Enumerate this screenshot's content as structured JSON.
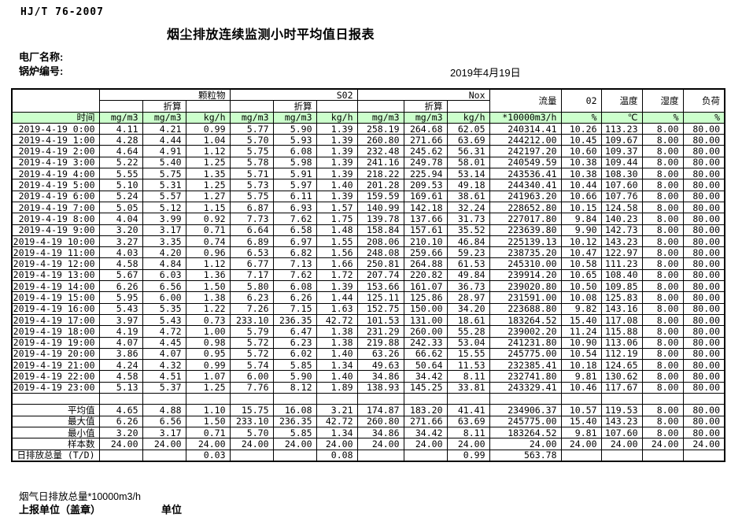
{
  "page": {
    "standard_code": "HJ/T 76-2007",
    "title": "烟尘排放连续监测小时平均值日报表",
    "plant_label": "电厂名称:",
    "boiler_label": "锅炉编号:",
    "date": "2019年4月19日"
  },
  "table": {
    "time_label": "时间",
    "converted_label": "折算",
    "group_labels": [
      "颗粒物",
      "S02",
      "Nox"
    ],
    "single_headers": [
      "流量",
      "02",
      "温度",
      "湿度",
      "负荷"
    ],
    "units": [
      "mg/m3",
      "mg/m3",
      "kg/h",
      "mg/m3",
      "mg/m3",
      "kg/h",
      "mg/m3",
      "mg/m3",
      "kg/h",
      "*10000m3/h",
      "%",
      "℃",
      "%",
      "%"
    ],
    "rows": [
      {
        "time": "2019-4-19 0:00",
        "values": [
          "4.11",
          "4.21",
          "0.99",
          "5.77",
          "5.90",
          "1.39",
          "258.19",
          "264.68",
          "62.05",
          "240314.41",
          "10.26",
          "113.23",
          "8.00",
          "80.00"
        ]
      },
      {
        "time": "2019-4-19 1:00",
        "values": [
          "4.28",
          "4.44",
          "1.04",
          "5.70",
          "5.93",
          "1.39",
          "260.80",
          "271.66",
          "63.69",
          "244212.00",
          "10.45",
          "109.67",
          "8.00",
          "80.00"
        ]
      },
      {
        "time": "2019-4-19 2:00",
        "values": [
          "4.64",
          "4.91",
          "1.12",
          "5.75",
          "6.08",
          "1.39",
          "232.48",
          "245.62",
          "56.31",
          "242197.20",
          "10.60",
          "109.37",
          "8.00",
          "80.00"
        ]
      },
      {
        "time": "2019-4-19 3:00",
        "values": [
          "5.22",
          "5.40",
          "1.25",
          "5.78",
          "5.98",
          "1.39",
          "241.16",
          "249.78",
          "58.01",
          "240549.59",
          "10.38",
          "109.44",
          "8.00",
          "80.00"
        ]
      },
      {
        "time": "2019-4-19 4:00",
        "values": [
          "5.55",
          "5.75",
          "1.35",
          "5.71",
          "5.91",
          "1.39",
          "218.22",
          "225.94",
          "53.14",
          "243536.41",
          "10.38",
          "108.30",
          "8.00",
          "80.00"
        ]
      },
      {
        "time": "2019-4-19 5:00",
        "values": [
          "5.10",
          "5.31",
          "1.25",
          "5.73",
          "5.97",
          "1.40",
          "201.28",
          "209.53",
          "49.18",
          "244340.41",
          "10.44",
          "107.60",
          "8.00",
          "80.00"
        ]
      },
      {
        "time": "2019-4-19 6:00",
        "values": [
          "5.24",
          "5.57",
          "1.27",
          "5.75",
          "6.11",
          "1.39",
          "159.59",
          "169.61",
          "38.61",
          "241963.20",
          "10.66",
          "107.76",
          "8.00",
          "80.00"
        ]
      },
      {
        "time": "2019-4-19 7:00",
        "values": [
          "5.05",
          "5.12",
          "1.15",
          "6.87",
          "6.93",
          "1.57",
          "140.99",
          "142.18",
          "32.24",
          "228652.80",
          "10.15",
          "124.58",
          "8.00",
          "80.00"
        ]
      },
      {
        "time": "2019-4-19 8:00",
        "values": [
          "4.04",
          "3.99",
          "0.92",
          "7.73",
          "7.62",
          "1.75",
          "139.78",
          "137.66",
          "31.73",
          "227017.80",
          "9.84",
          "140.23",
          "8.00",
          "80.00"
        ]
      },
      {
        "time": "2019-4-19 9:00",
        "values": [
          "3.20",
          "3.17",
          "0.71",
          "6.64",
          "6.58",
          "1.48",
          "158.84",
          "157.61",
          "35.52",
          "223639.80",
          "9.90",
          "142.73",
          "8.00",
          "80.00"
        ]
      },
      {
        "time": "2019-4-19 10:00",
        "values": [
          "3.27",
          "3.35",
          "0.74",
          "6.89",
          "6.97",
          "1.55",
          "208.06",
          "210.10",
          "46.84",
          "225139.13",
          "10.12",
          "143.23",
          "8.00",
          "80.00"
        ]
      },
      {
        "time": "2019-4-19 11:00",
        "values": [
          "4.03",
          "4.20",
          "0.96",
          "6.53",
          "6.82",
          "1.56",
          "248.08",
          "259.66",
          "59.23",
          "238735.20",
          "10.47",
          "122.97",
          "8.00",
          "80.00"
        ]
      },
      {
        "time": "2019-4-19 12:00",
        "values": [
          "4.58",
          "4.84",
          "1.12",
          "6.77",
          "7.13",
          "1.66",
          "250.81",
          "264.88",
          "61.53",
          "245310.00",
          "10.58",
          "111.23",
          "8.00",
          "80.00"
        ]
      },
      {
        "time": "2019-4-19 13:00",
        "values": [
          "5.67",
          "6.03",
          "1.36",
          "7.17",
          "7.62",
          "1.72",
          "207.74",
          "220.82",
          "49.84",
          "239914.20",
          "10.65",
          "108.40",
          "8.00",
          "80.00"
        ]
      },
      {
        "time": "2019-4-19 14:00",
        "values": [
          "6.26",
          "6.56",
          "1.50",
          "5.80",
          "6.08",
          "1.39",
          "153.66",
          "161.07",
          "36.73",
          "239020.80",
          "10.50",
          "109.85",
          "8.00",
          "80.00"
        ]
      },
      {
        "time": "2019-4-19 15:00",
        "values": [
          "5.95",
          "6.00",
          "1.38",
          "6.23",
          "6.26",
          "1.44",
          "125.11",
          "125.86",
          "28.97",
          "231591.00",
          "10.08",
          "125.83",
          "8.00",
          "80.00"
        ]
      },
      {
        "time": "2019-4-19 16:00",
        "values": [
          "5.43",
          "5.35",
          "1.22",
          "7.26",
          "7.15",
          "1.63",
          "152.75",
          "150.00",
          "34.20",
          "223688.80",
          "9.82",
          "143.16",
          "8.00",
          "80.00"
        ]
      },
      {
        "time": "2019-4-19 17:00",
        "values": [
          "3.97",
          "5.43",
          "0.73",
          "233.10",
          "236.35",
          "42.72",
          "101.53",
          "131.00",
          "18.61",
          "183264.52",
          "15.40",
          "117.08",
          "8.00",
          "80.00"
        ]
      },
      {
        "time": "2019-4-19 18:00",
        "values": [
          "4.19",
          "4.72",
          "1.00",
          "5.79",
          "6.47",
          "1.38",
          "231.29",
          "260.00",
          "55.28",
          "239002.20",
          "11.24",
          "115.88",
          "8.00",
          "80.00"
        ]
      },
      {
        "time": "2019-4-19 19:00",
        "values": [
          "4.07",
          "4.45",
          "0.98",
          "5.72",
          "6.23",
          "1.38",
          "219.88",
          "242.33",
          "53.04",
          "241231.80",
          "10.90",
          "113.06",
          "8.00",
          "80.00"
        ]
      },
      {
        "time": "2019-4-19 20:00",
        "values": [
          "3.86",
          "4.07",
          "0.95",
          "5.72",
          "6.02",
          "1.40",
          "63.26",
          "66.62",
          "15.55",
          "245775.00",
          "10.54",
          "112.19",
          "8.00",
          "80.00"
        ]
      },
      {
        "time": "2019-4-19 21:00",
        "values": [
          "4.24",
          "4.32",
          "0.99",
          "5.74",
          "5.85",
          "1.34",
          "49.63",
          "50.64",
          "11.53",
          "232385.41",
          "10.18",
          "124.65",
          "8.00",
          "80.00"
        ]
      },
      {
        "time": "2019-4-19 22:00",
        "values": [
          "4.58",
          "4.51",
          "1.07",
          "6.00",
          "5.90",
          "1.40",
          "34.86",
          "34.42",
          "8.11",
          "232741.80",
          "9.81",
          "130.62",
          "8.00",
          "80.00"
        ]
      },
      {
        "time": "2019-4-19 23:00",
        "values": [
          "5.13",
          "5.37",
          "1.25",
          "7.76",
          "8.12",
          "1.89",
          "138.93",
          "145.25",
          "33.81",
          "243329.41",
          "10.46",
          "117.67",
          "8.00",
          "80.00"
        ]
      }
    ],
    "summary_rows": [
      {
        "label": "平均值",
        "values": [
          "4.65",
          "4.88",
          "1.10",
          "15.75",
          "16.08",
          "3.21",
          "174.87",
          "183.20",
          "41.41",
          "234906.37",
          "10.57",
          "119.53",
          "8.00",
          "80.00"
        ]
      },
      {
        "label": "最大值",
        "values": [
          "6.26",
          "6.56",
          "1.50",
          "233.10",
          "236.35",
          "42.72",
          "260.80",
          "271.66",
          "63.69",
          "245775.00",
          "15.40",
          "143.23",
          "8.00",
          "80.00"
        ]
      },
      {
        "label": "最小值",
        "values": [
          "3.20",
          "3.17",
          "0.71",
          "5.70",
          "5.85",
          "1.34",
          "34.86",
          "34.42",
          "8.11",
          "183264.52",
          "9.81",
          "107.60",
          "8.00",
          "80.00"
        ]
      },
      {
        "label": "样本数",
        "values": [
          "24.00",
          "24.00",
          "24.00",
          "24.00",
          "24.00",
          "24.00",
          "24.00",
          "24.00",
          "24.00",
          "24.00",
          "24.00",
          "24.00",
          "24.00",
          "24.00"
        ]
      },
      {
        "label": "日排放总量 (T/D)",
        "values": [
          "",
          "",
          "0.03",
          "",
          "",
          "0.08",
          "",
          "",
          "0.99",
          "563.78",
          "",
          "",
          "",
          ""
        ]
      }
    ]
  },
  "footer": {
    "note": "烟气日排放总量*10000m3/h",
    "report_unit_label": "上报单位（盖章）",
    "unit_label": "单位"
  },
  "colors": {
    "header_green": "#ccffcc",
    "border": "#000000",
    "background": "#ffffff"
  }
}
